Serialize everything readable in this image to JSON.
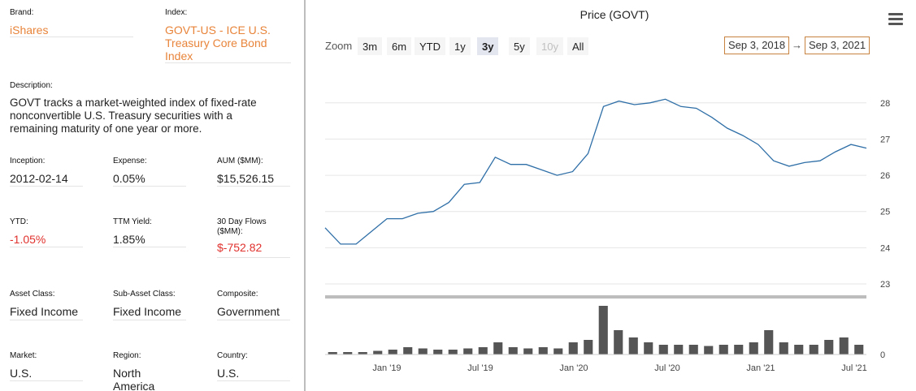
{
  "info": {
    "brand": {
      "label": "Brand:",
      "value": "iShares"
    },
    "index": {
      "label": "Index:",
      "value": "GOVT-US - ICE U.S. Treasury Core Bond Index"
    },
    "description": {
      "label": "Description:",
      "value": "GOVT tracks a market-weighted index of fixed-rate nonconvertible U.S. Treasury securities with a remaining maturity of one year or more."
    },
    "inception": {
      "label": "Inception:",
      "value": "2012-02-14"
    },
    "expense": {
      "label": "Expense:",
      "value": "0.05%"
    },
    "aum": {
      "label": "AUM ($MM):",
      "value": "$15,526.15"
    },
    "ytd": {
      "label": "YTD:",
      "value": "-1.05%"
    },
    "ttm_yield": {
      "label": "TTM Yield:",
      "value": "1.85%"
    },
    "flows": {
      "label": "30 Day Flows ($MM):",
      "value": "$-752.82"
    },
    "asset_class": {
      "label": "Asset Class:",
      "value": "Fixed Income"
    },
    "sub_asset_class": {
      "label": "Sub-Asset Class:",
      "value": "Fixed Income"
    },
    "composite": {
      "label": "Composite:",
      "value": "Government"
    },
    "market": {
      "label": "Market:",
      "value": "U.S."
    },
    "region": {
      "label": "Region:",
      "value": "North America"
    },
    "country": {
      "label": "Country:",
      "value": "U.S."
    }
  },
  "colors": {
    "orange": "#e8843a",
    "red": "#e0312d",
    "price_line": "#2f6fa7",
    "volume_bar": "#555555"
  },
  "chart": {
    "title": "Price (GOVT)",
    "zoom_label": "Zoom",
    "zoom_buttons": [
      {
        "label": "3m",
        "state": "normal"
      },
      {
        "label": "6m",
        "state": "normal"
      },
      {
        "label": "YTD",
        "state": "normal"
      },
      {
        "label": "1y",
        "state": "normal"
      },
      {
        "label": "3y",
        "state": "active"
      },
      {
        "label": "5y",
        "state": "normal"
      },
      {
        "label": "10y",
        "state": "disabled"
      },
      {
        "label": "All",
        "state": "normal"
      }
    ],
    "from_date": "Sep 3, 2018",
    "arrow": "→",
    "to_date": "Sep 3, 2021",
    "menu_icon": "hamburger-menu-icon"
  },
  "chart_data": {
    "type": "line",
    "title": "Price (GOVT)",
    "x_ticks": [
      "Jan '19",
      "Jul '19",
      "Jan '20",
      "Jul '20",
      "Jan '21",
      "Jul '21"
    ],
    "y_ticks": [
      23,
      24,
      25,
      26,
      27,
      28
    ],
    "ylim": [
      23,
      28.6
    ],
    "volume_ticks": [
      0
    ],
    "grid": true,
    "series": [
      {
        "x": [
          "2018-09",
          "2018-10",
          "2018-11",
          "2018-12",
          "2019-01",
          "2019-02",
          "2019-03",
          "2019-04",
          "2019-05",
          "2019-06",
          "2019-07",
          "2019-08",
          "2019-09",
          "2019-10",
          "2019-11",
          "2019-12",
          "2020-01",
          "2020-02",
          "2020-03",
          "2020-04",
          "2020-05",
          "2020-06",
          "2020-07",
          "2020-08",
          "2020-09",
          "2020-10",
          "2020-11",
          "2020-12",
          "2021-01",
          "2021-02",
          "2021-03",
          "2021-04",
          "2021-05",
          "2021-06",
          "2021-07",
          "2021-08"
        ],
        "y": [
          24.55,
          24.1,
          24.1,
          24.45,
          24.8,
          24.8,
          24.95,
          25.0,
          25.25,
          25.75,
          25.8,
          26.5,
          26.3,
          26.3,
          26.15,
          26.0,
          26.1,
          26.6,
          27.9,
          28.05,
          27.95,
          28.0,
          28.1,
          27.9,
          27.85,
          27.6,
          27.3,
          27.1,
          26.85,
          26.4,
          26.25,
          26.35,
          26.4,
          26.65,
          26.85,
          26.75
        ]
      }
    ],
    "volume": [
      2,
      2,
      2,
      3,
      4,
      6,
      5,
      4,
      4,
      5,
      6,
      10,
      6,
      5,
      6,
      5,
      10,
      12,
      40,
      20,
      14,
      10,
      8,
      8,
      8,
      7,
      8,
      8,
      10,
      20,
      10,
      8,
      8,
      12,
      14,
      8
    ]
  }
}
